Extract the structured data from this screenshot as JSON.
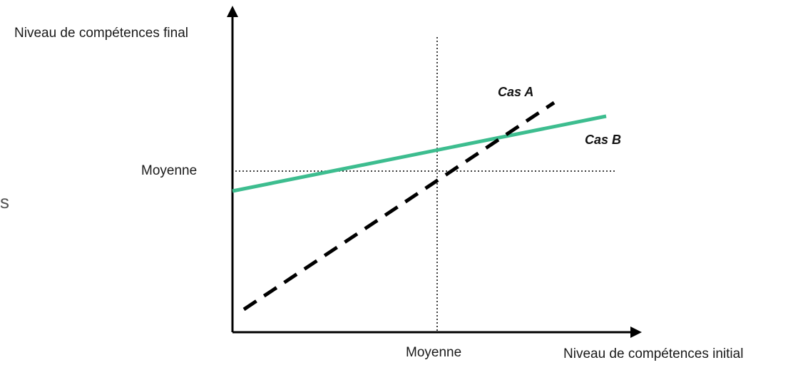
{
  "diagram": {
    "y_axis_label": "Niveau de compétences final",
    "x_axis_label": "Niveau de compétences initial",
    "y_mean_label": "Moyenne",
    "x_mean_label": "Moyenne",
    "case_a_label": "Cas A",
    "case_b_label": "Cas B",
    "fragment_text": "s",
    "colors": {
      "axes": "#000000",
      "case_a": "#000000",
      "case_b": "#3dbd8f",
      "reference": "#000000"
    }
  }
}
